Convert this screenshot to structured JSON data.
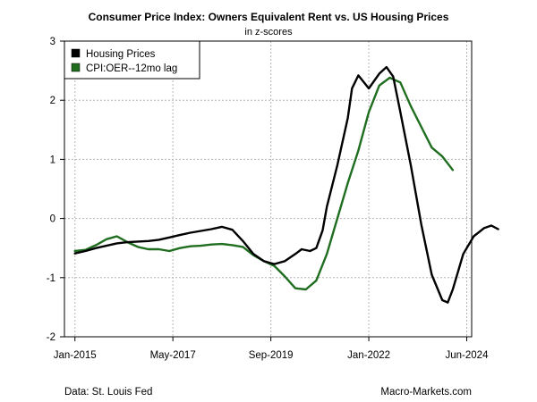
{
  "colors": {
    "housing": "#000000",
    "cpi": "#1f6e1f",
    "grid": "#b5b5b5"
  },
  "footer": {
    "source": "Data: St. Louis Fed",
    "brand": "Macro-Markets.com"
  },
  "chart_data": {
    "type": "line",
    "title": "Consumer Price Index: Owners Equivalent Rent vs. US Housing Prices",
    "subtitle": "in z-scores",
    "xlabel": "",
    "ylabel": "",
    "xlim": [
      2014.75,
      2024.45
    ],
    "ylim": [
      -2,
      3
    ],
    "x_ticks": [
      {
        "value": 2015.0,
        "label": "Jan-2015"
      },
      {
        "value": 2017.333,
        "label": "May-2017"
      },
      {
        "value": 2019.667,
        "label": "Sep-2019"
      },
      {
        "value": 2022.0,
        "label": "Jan-2022"
      },
      {
        "value": 2024.333,
        "label": "Jun-2024"
      }
    ],
    "y_ticks": [
      -2,
      -1,
      0,
      1,
      2,
      3
    ],
    "grid": true,
    "legend_position": "top-left",
    "series": [
      {
        "name": "Housing Prices",
        "color": "#000000",
        "points": [
          [
            2015.0,
            -0.59
          ],
          [
            2015.25,
            -0.55
          ],
          [
            2015.5,
            -0.5
          ],
          [
            2015.75,
            -0.46
          ],
          [
            2016.0,
            -0.42
          ],
          [
            2016.25,
            -0.4
          ],
          [
            2016.5,
            -0.39
          ],
          [
            2016.75,
            -0.38
          ],
          [
            2017.0,
            -0.36
          ],
          [
            2017.25,
            -0.32
          ],
          [
            2017.5,
            -0.28
          ],
          [
            2017.75,
            -0.24
          ],
          [
            2018.0,
            -0.21
          ],
          [
            2018.25,
            -0.18
          ],
          [
            2018.5,
            -0.14
          ],
          [
            2018.75,
            -0.19
          ],
          [
            2019.0,
            -0.38
          ],
          [
            2019.25,
            -0.6
          ],
          [
            2019.5,
            -0.72
          ],
          [
            2019.75,
            -0.77
          ],
          [
            2020.0,
            -0.72
          ],
          [
            2020.25,
            -0.6
          ],
          [
            2020.4,
            -0.52
          ],
          [
            2020.6,
            -0.55
          ],
          [
            2020.75,
            -0.5
          ],
          [
            2020.9,
            -0.2
          ],
          [
            2021.0,
            0.2
          ],
          [
            2021.25,
            0.9
          ],
          [
            2021.5,
            1.7
          ],
          [
            2021.6,
            2.2
          ],
          [
            2021.75,
            2.42
          ],
          [
            2022.0,
            2.2
          ],
          [
            2022.25,
            2.45
          ],
          [
            2022.42,
            2.56
          ],
          [
            2022.58,
            2.4
          ],
          [
            2022.75,
            1.8
          ],
          [
            2023.0,
            0.9
          ],
          [
            2023.25,
            -0.1
          ],
          [
            2023.5,
            -0.95
          ],
          [
            2023.75,
            -1.38
          ],
          [
            2023.88,
            -1.42
          ],
          [
            2024.0,
            -1.2
          ],
          [
            2024.25,
            -0.6
          ],
          [
            2024.5,
            -0.3
          ],
          [
            2024.75,
            -0.16
          ],
          [
            2024.92,
            -0.12
          ],
          [
            2025.08,
            -0.18
          ]
        ]
      },
      {
        "name": "CPI:OER--12mo lag",
        "color": "#1f6e1f",
        "points": [
          [
            2015.0,
            -0.55
          ],
          [
            2015.25,
            -0.53
          ],
          [
            2015.5,
            -0.45
          ],
          [
            2015.75,
            -0.35
          ],
          [
            2016.0,
            -0.3
          ],
          [
            2016.25,
            -0.4
          ],
          [
            2016.5,
            -0.48
          ],
          [
            2016.75,
            -0.52
          ],
          [
            2017.0,
            -0.52
          ],
          [
            2017.25,
            -0.55
          ],
          [
            2017.5,
            -0.5
          ],
          [
            2017.75,
            -0.47
          ],
          [
            2018.0,
            -0.46
          ],
          [
            2018.25,
            -0.44
          ],
          [
            2018.5,
            -0.43
          ],
          [
            2018.75,
            -0.45
          ],
          [
            2019.0,
            -0.48
          ],
          [
            2019.25,
            -0.62
          ],
          [
            2019.5,
            -0.72
          ],
          [
            2019.75,
            -0.8
          ],
          [
            2020.0,
            -0.98
          ],
          [
            2020.25,
            -1.18
          ],
          [
            2020.5,
            -1.2
          ],
          [
            2020.75,
            -1.05
          ],
          [
            2021.0,
            -0.6
          ],
          [
            2021.25,
            0.0
          ],
          [
            2021.5,
            0.6
          ],
          [
            2021.75,
            1.15
          ],
          [
            2022.0,
            1.8
          ],
          [
            2022.25,
            2.25
          ],
          [
            2022.5,
            2.38
          ],
          [
            2022.75,
            2.3
          ],
          [
            2023.0,
            1.9
          ],
          [
            2023.25,
            1.55
          ],
          [
            2023.5,
            1.2
          ],
          [
            2023.75,
            1.05
          ],
          [
            2024.0,
            0.82
          ]
        ]
      }
    ]
  }
}
